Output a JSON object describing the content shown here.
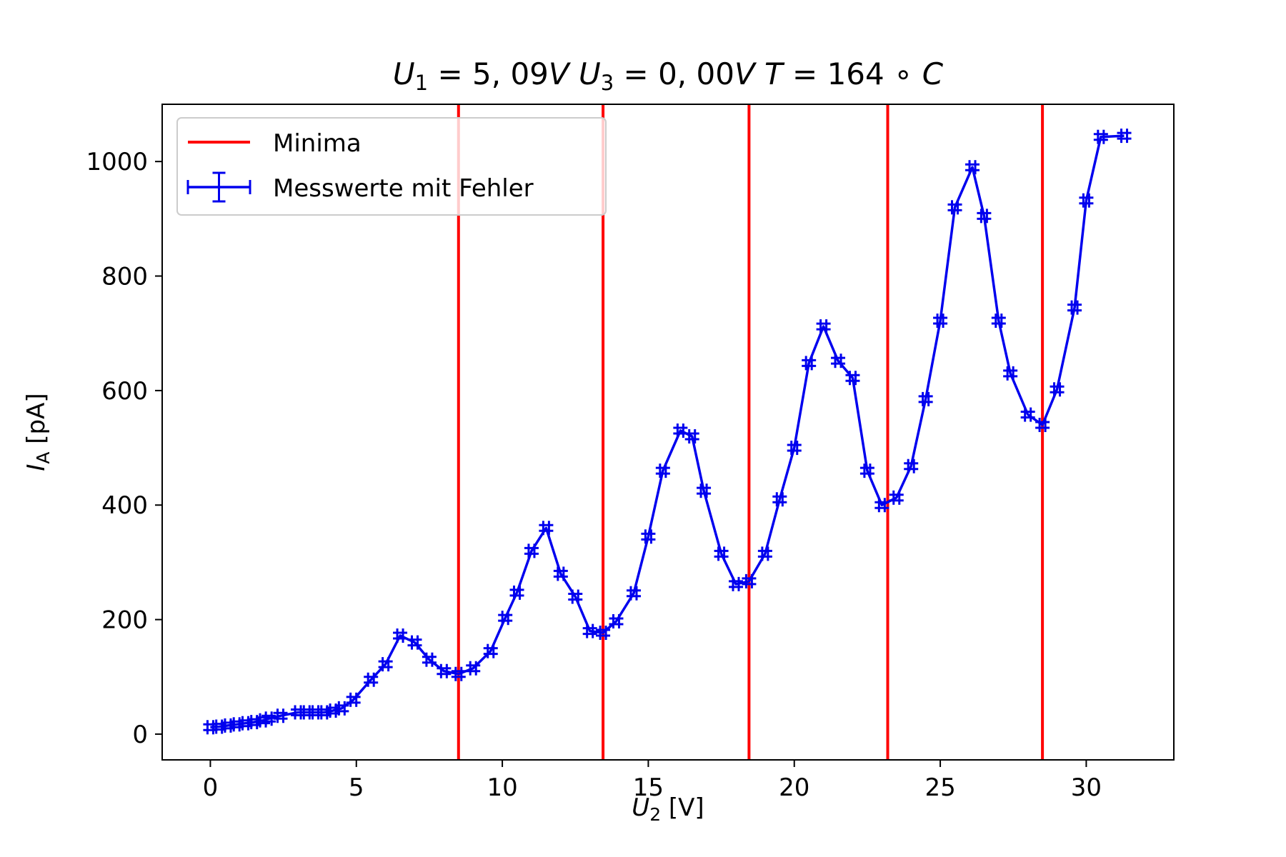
{
  "chart_data": {
    "type": "line",
    "title": {
      "parts": [
        {
          "text": "U",
          "italic": true
        },
        {
          "text": "1",
          "italic": false,
          "sub": true
        },
        {
          "text": " = 5, 09",
          "italic": false
        },
        {
          "text": "V",
          "italic": true
        },
        {
          "text": "    U",
          "italic": true
        },
        {
          "text": "3",
          "italic": false,
          "sub": true
        },
        {
          "text": " = 0, 00",
          "italic": false
        },
        {
          "text": "V",
          "italic": true
        },
        {
          "text": "    T",
          "italic": true
        },
        {
          "text": " = 164 ∘ ",
          "italic": false
        },
        {
          "text": "C",
          "italic": true
        }
      ]
    },
    "xlabel": {
      "base": "U",
      "sub": "2",
      "unit": " [V]"
    },
    "ylabel": {
      "base": "I",
      "sub": "A",
      "unit": " [pA]"
    },
    "xlim": [
      -1.65,
      33.0
    ],
    "ylim": [
      -45,
      1100
    ],
    "xticks": [
      0,
      5,
      10,
      15,
      20,
      25,
      30
    ],
    "yticks": [
      0,
      200,
      400,
      600,
      800,
      1000
    ],
    "grid": false,
    "legend": {
      "placement": "upper left",
      "entries": [
        "Minima",
        "Messwerte mit Fehler"
      ]
    },
    "colors": {
      "minima": "#ff0000",
      "series": "#0000ee"
    },
    "minima_x": [
      8.5,
      13.45,
      18.45,
      23.2,
      28.5
    ],
    "series": [
      {
        "name": "Messwerte mit Fehler",
        "x": [
          0,
          0.3,
          0.6,
          0.9,
          1.2,
          1.5,
          1.8,
          2.0,
          2.4,
          3.0,
          3.3,
          3.6,
          3.9,
          4.2,
          4.5,
          4.9,
          5.5,
          6.0,
          6.5,
          7.0,
          7.5,
          8.0,
          8.5,
          9.0,
          9.6,
          10.1,
          10.5,
          11.0,
          11.5,
          12.0,
          12.5,
          13.0,
          13.45,
          13.9,
          14.5,
          15.0,
          15.5,
          16.1,
          16.5,
          16.9,
          17.5,
          18.0,
          18.45,
          19.0,
          19.5,
          20.0,
          20.5,
          21.0,
          21.5,
          22.0,
          22.5,
          23.0,
          23.5,
          24.0,
          24.5,
          25.0,
          25.5,
          26.1,
          26.5,
          27.0,
          27.4,
          28.0,
          28.5,
          29.0,
          29.6,
          30.0,
          30.5,
          31.3
        ],
        "y": [
          12,
          13,
          15,
          17,
          19,
          21,
          24,
          27,
          32,
          38,
          38,
          38,
          38,
          41,
          45,
          60,
          95,
          122,
          172,
          160,
          130,
          110,
          105,
          115,
          145,
          203,
          247,
          320,
          360,
          280,
          240,
          180,
          177,
          197,
          246,
          345,
          460,
          530,
          520,
          425,
          315,
          262,
          267,
          315,
          410,
          500,
          648,
          712,
          652,
          622,
          460,
          400,
          413,
          468,
          585,
          722,
          920,
          990,
          905,
          722,
          630,
          558,
          540,
          602,
          745,
          932,
          1043,
          1045
        ]
      }
    ]
  }
}
